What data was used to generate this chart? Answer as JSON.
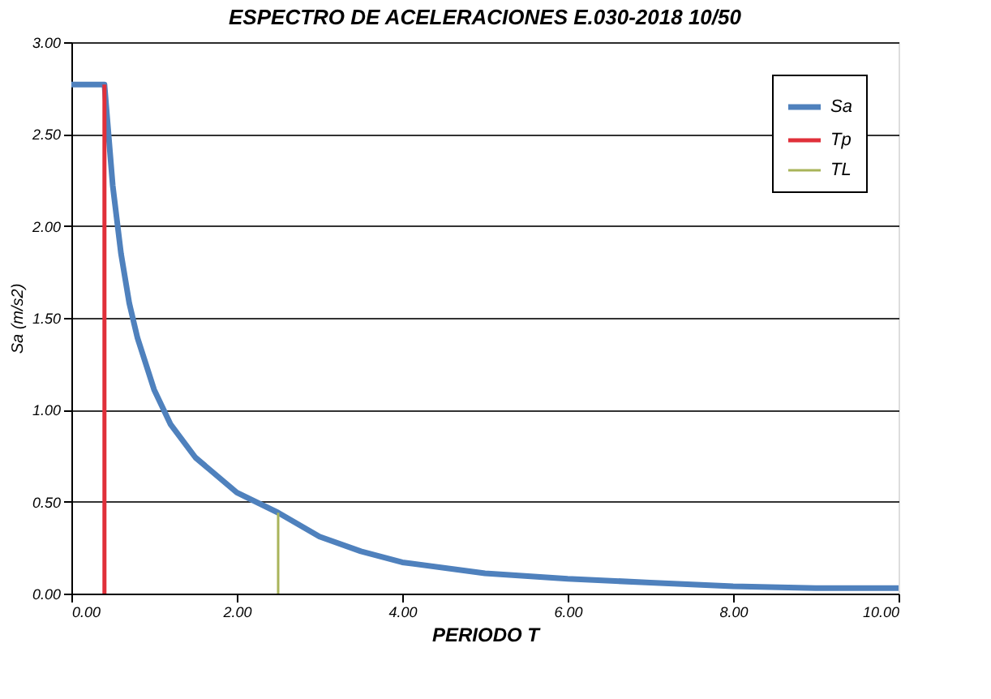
{
  "chart_data": {
    "type": "line",
    "title": "ESPECTRO DE ACELERACIONES E.030-2018 10/50",
    "xlabel": "PERIODO T",
    "ylabel": "Sa (m/s2)",
    "xlim": [
      0,
      10
    ],
    "ylim": [
      0,
      3
    ],
    "xticks": [
      {
        "value": 0,
        "label": "0.00"
      },
      {
        "value": 2,
        "label": "2.00"
      },
      {
        "value": 4,
        "label": "4.00"
      },
      {
        "value": 6,
        "label": "6.00"
      },
      {
        "value": 8,
        "label": "8.00"
      },
      {
        "value": 10,
        "label": "10.00"
      }
    ],
    "yticks": [
      {
        "value": 0,
        "label": "0.00"
      },
      {
        "value": 0.5,
        "label": "0.50"
      },
      {
        "value": 1,
        "label": "1.00"
      },
      {
        "value": 1.5,
        "label": "1.50"
      },
      {
        "value": 2,
        "label": "2.00"
      },
      {
        "value": 2.5,
        "label": "2.50"
      },
      {
        "value": 3,
        "label": "3.00"
      }
    ],
    "grid": "y",
    "legend": "top right",
    "marker": "none",
    "line_style": "solid",
    "series": [
      {
        "name": "Sa",
        "color": "#4f81bd",
        "x": [
          0,
          0.4,
          0.5,
          0.6,
          0.7,
          0.8,
          1.0,
          1.2,
          1.5,
          2.0,
          2.5,
          3.0,
          3.5,
          4.0,
          5.0,
          6.0,
          7.0,
          8.0,
          9.0,
          10.0
        ],
        "values": [
          2.77,
          2.77,
          2.22,
          1.85,
          1.58,
          1.39,
          1.11,
          0.92,
          0.74,
          0.55,
          0.44,
          0.31,
          0.23,
          0.17,
          0.11,
          0.08,
          0.06,
          0.04,
          0.03,
          0.03
        ]
      },
      {
        "name": "Tp",
        "color": "#e0303a",
        "x": [
          0.4,
          0.4
        ],
        "values": [
          0,
          2.77
        ]
      },
      {
        "name": "TL",
        "color": "#a9b45a",
        "x": [
          2.5,
          2.5
        ],
        "values": [
          0,
          0.44
        ]
      }
    ]
  }
}
